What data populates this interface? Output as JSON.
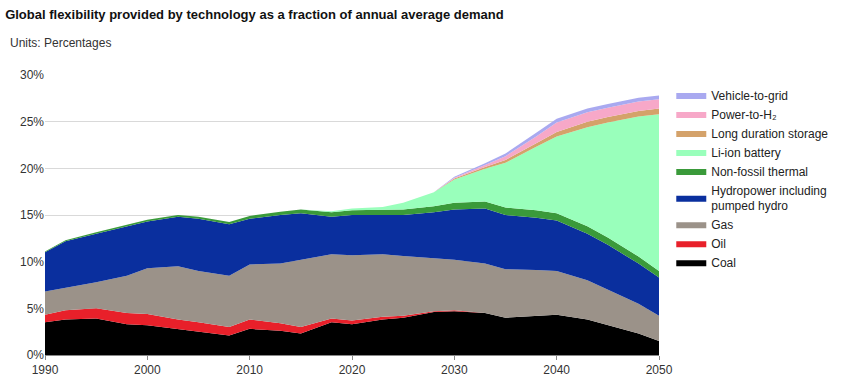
{
  "chart_data": {
    "type": "area",
    "stacked": true,
    "title": "Global flexibility provided by technology as a fraction of annual average demand",
    "subtitle": "Units: Percentages",
    "x": [
      1990,
      1992,
      1995,
      1998,
      2000,
      2003,
      2005,
      2008,
      2010,
      2013,
      2015,
      2018,
      2020,
      2023,
      2025,
      2028,
      2030,
      2033,
      2035,
      2038,
      2040,
      2043,
      2045,
      2048,
      2050
    ],
    "series": [
      {
        "name": "Coal",
        "color": "#000000",
        "values": [
          3.5,
          3.8,
          3.9,
          3.3,
          3.2,
          2.8,
          2.5,
          2.1,
          2.8,
          2.6,
          2.3,
          3.5,
          3.3,
          3.8,
          4.0,
          4.6,
          4.7,
          4.5,
          4.0,
          4.2,
          4.3,
          3.8,
          3.2,
          2.3,
          1.5
        ]
      },
      {
        "name": "Oil",
        "color": "#e8202a",
        "values": [
          0.8,
          1.0,
          1.1,
          1.2,
          1.2,
          1.0,
          1.0,
          0.9,
          1.0,
          0.8,
          0.7,
          0.4,
          0.4,
          0.3,
          0.2,
          0.1,
          0.1,
          0,
          0,
          0,
          0,
          0,
          0,
          0,
          0
        ]
      },
      {
        "name": "Gas",
        "color": "#9b9289",
        "values": [
          2.5,
          2.4,
          2.8,
          4.0,
          4.9,
          5.7,
          5.5,
          5.5,
          5.9,
          6.4,
          7.2,
          6.9,
          7.0,
          6.7,
          6.4,
          5.7,
          5.4,
          5.3,
          5.2,
          4.9,
          4.7,
          4.2,
          3.8,
          3.2,
          2.7
        ]
      },
      {
        "name": "Hydropower including pumped hydro",
        "color": "#0a2f9e",
        "values": [
          4.2,
          5.0,
          5.2,
          5.3,
          5.0,
          5.3,
          5.6,
          5.5,
          4.9,
          5.2,
          5.0,
          4.0,
          4.3,
          4.2,
          4.4,
          4.9,
          5.4,
          5.9,
          5.8,
          5.6,
          5.4,
          5.0,
          4.8,
          4.3,
          4.1
        ]
      },
      {
        "name": "Non-fossil thermal",
        "color": "#3a9a3a",
        "values": [
          0.1,
          0.1,
          0.15,
          0.2,
          0.2,
          0.2,
          0.2,
          0.25,
          0.3,
          0.35,
          0.4,
          0.5,
          0.5,
          0.55,
          0.6,
          0.65,
          0.7,
          0.75,
          0.8,
          0.8,
          0.8,
          0.8,
          0.8,
          0.75,
          0.7
        ]
      },
      {
        "name": "Li-ion battery",
        "color": "#99ffbb",
        "values": [
          0,
          0,
          0,
          0,
          0,
          0,
          0,
          0,
          0,
          0,
          0,
          0.1,
          0.2,
          0.3,
          0.7,
          1.5,
          2.5,
          3.5,
          4.8,
          6.8,
          8.2,
          10.6,
          12.3,
          15.0,
          16.8
        ]
      },
      {
        "name": "Long duration storage",
        "color": "#d4a26a",
        "values": [
          0,
          0,
          0,
          0,
          0,
          0,
          0,
          0,
          0,
          0,
          0,
          0,
          0,
          0,
          0,
          0,
          0.1,
          0.2,
          0.3,
          0.4,
          0.5,
          0.6,
          0.6,
          0.6,
          0.6
        ]
      },
      {
        "name": "Power-to-H₂",
        "color": "#f7a8c8",
        "values": [
          0,
          0,
          0,
          0,
          0,
          0,
          0,
          0,
          0,
          0,
          0,
          0,
          0,
          0,
          0,
          0,
          0.1,
          0.2,
          0.4,
          0.7,
          1.0,
          1.0,
          1.0,
          1.0,
          1.0
        ]
      },
      {
        "name": "Vehicle-to-grid",
        "color": "#a9a9f0",
        "values": [
          0,
          0,
          0,
          0,
          0,
          0,
          0,
          0,
          0,
          0,
          0,
          0,
          0,
          0,
          0,
          0,
          0.1,
          0.2,
          0.3,
          0.4,
          0.4,
          0.4,
          0.4,
          0.4,
          0.4
        ]
      }
    ],
    "xlim": [
      1990,
      2050
    ],
    "xticks": [
      1990,
      2000,
      2010,
      2020,
      2030,
      2040,
      2050
    ],
    "ylim": [
      0,
      30
    ],
    "yticks": [
      {
        "value": 0,
        "label": "0%"
      },
      {
        "value": 5,
        "label": "5%"
      },
      {
        "value": 10,
        "label": "10%"
      },
      {
        "value": 15,
        "label": "15%"
      },
      {
        "value": 20,
        "label": "20%"
      },
      {
        "value": 25,
        "label": "25%"
      },
      {
        "value": 30,
        "label": "30%"
      }
    ],
    "grid": true,
    "legend": "right"
  }
}
